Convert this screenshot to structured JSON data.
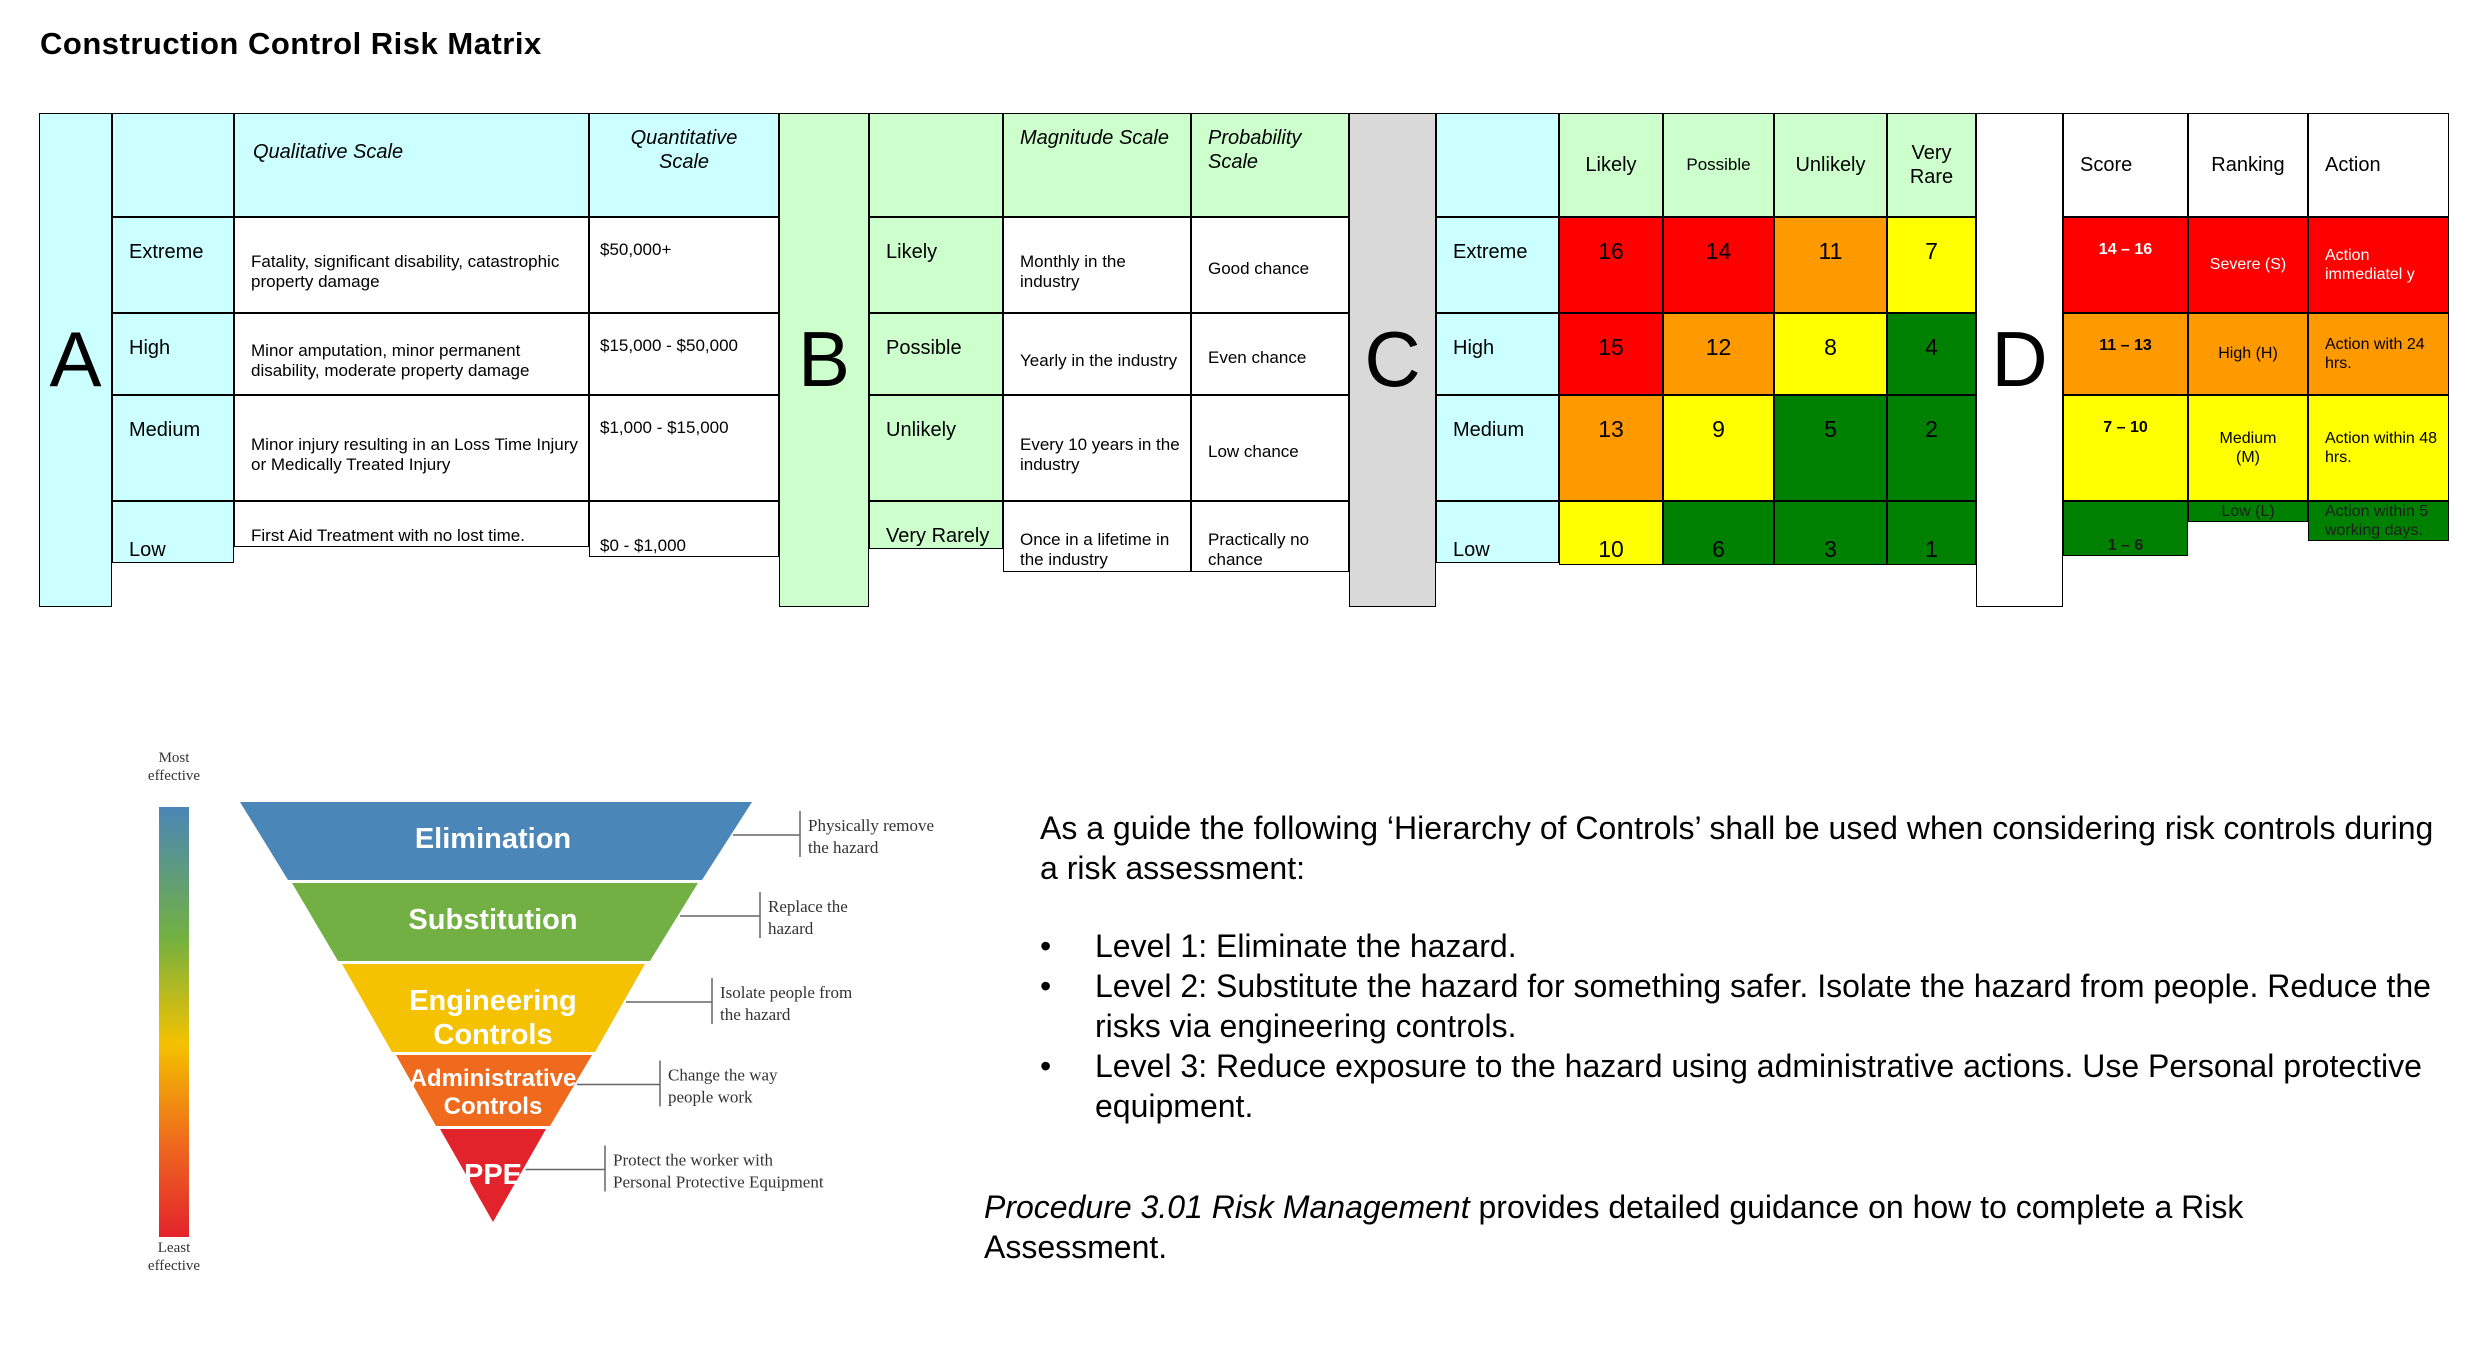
{
  "title": "Construction Control Risk Matrix",
  "colors": {
    "cyan": "#ccffff",
    "green_light": "#ccffcc",
    "grey": "#d9d9d9",
    "red": "#ff0000",
    "orange": "#ff9900",
    "yellow": "#ffff00",
    "green": "#008000",
    "white": "#ffffff"
  },
  "section_a": {
    "letter": "A",
    "header_qualitative": "Qualitative Scale",
    "header_quantitative": "Quantitative Scale",
    "rows": [
      {
        "label": "Extreme",
        "qualitative": "Fatality, significant disability, catastrophic property damage",
        "quantitative": "$50,000+"
      },
      {
        "label": "High",
        "qualitative": "Minor amputation, minor permanent disability, moderate property damage",
        "quantitative": "$15,000 - $50,000"
      },
      {
        "label": "Medium",
        "qualitative": "Minor injury resulting in an Loss Time Injury or Medically Treated Injury",
        "quantitative": "$1,000 - $15,000"
      },
      {
        "label": "Low",
        "qualitative": "First Aid Treatment with no lost time.",
        "quantitative": "$0 - $1,000"
      }
    ]
  },
  "section_b": {
    "letter": "B",
    "header_magnitude": "Magnitude Scale",
    "header_probability": "Probability Scale",
    "rows": [
      {
        "label": "Likely",
        "magnitude": "Monthly in the industry",
        "probability": "Good chance"
      },
      {
        "label": "Possible",
        "magnitude": "Yearly in the industry",
        "probability": "Even chance"
      },
      {
        "label": "Unlikely",
        "magnitude": "Every 10 years in the industry",
        "probability": "Low chance"
      },
      {
        "label": "Very Rarely",
        "magnitude": "Once in a lifetime in the industry",
        "probability": "Practically no chance"
      }
    ]
  },
  "section_c": {
    "letter": "C",
    "columns": [
      "Likely",
      "Possible",
      "Unlikely",
      "Very Rare"
    ],
    "rows": [
      {
        "label": "Extreme",
        "values": [
          "16",
          "14",
          "11",
          "7"
        ],
        "colors": [
          "#ff0000",
          "#ff0000",
          "#ff9900",
          "#ffff00"
        ]
      },
      {
        "label": "High",
        "values": [
          "15",
          "12",
          "8",
          "4"
        ],
        "colors": [
          "#ff0000",
          "#ff9900",
          "#ffff00",
          "#008000"
        ]
      },
      {
        "label": "Medium",
        "values": [
          "13",
          "9",
          "5",
          "2"
        ],
        "colors": [
          "#ff9900",
          "#ffff00",
          "#008000",
          "#008000"
        ]
      },
      {
        "label": "Low",
        "values": [
          "10",
          "6",
          "3",
          "1"
        ],
        "colors": [
          "#ffff00",
          "#008000",
          "#008000",
          "#008000"
        ]
      }
    ]
  },
  "section_d": {
    "letter": "D",
    "header_score": "Score",
    "header_ranking": "Ranking",
    "header_action": "Action",
    "rows": [
      {
        "score": "14 – 16",
        "ranking": "Severe (S)",
        "action": "Action immediatel y",
        "color": "#ff0000"
      },
      {
        "score": "11 – 13",
        "ranking": "High (H)",
        "action": "Action with 24 hrs.",
        "color": "#ff9900"
      },
      {
        "score": "7 – 10",
        "ranking": "Medium (M)",
        "action": "Action within 48 hrs.",
        "color": "#ffff00"
      },
      {
        "score": "1 – 6",
        "ranking": "Low (L)",
        "action": "Action within 5 working days.",
        "color": "#008000"
      }
    ]
  },
  "hierarchy": {
    "most_effective": "Most effective",
    "least_effective": "Least effective",
    "levels": [
      {
        "label": "Elimination",
        "note": "Physically remove the hazard",
        "color": "#4b86b8"
      },
      {
        "label": "Substitution",
        "note": "Replace the hazard",
        "color": "#72b043"
      },
      {
        "label": "Engineering Controls",
        "note": "Isolate people from the hazard",
        "color": "#f4c200"
      },
      {
        "label": "Administrative Controls",
        "note": "Change the way people work",
        "color": "#ef6a1d"
      },
      {
        "label": "PPE",
        "note": "Protect the worker with Personal Protective Equipment",
        "color": "#e3232c"
      }
    ]
  },
  "guide": {
    "intro": "As a guide the following ‘Hierarchy of Controls’ shall be used when considering risk controls during a risk assessment:",
    "bullets": [
      "Level 1: Eliminate the hazard.",
      "Level 2: Substitute the hazard for something safer. Isolate the hazard from people. Reduce the risks via engineering controls.",
      "Level 3: Reduce exposure to the hazard using administrative actions. Use Personal protective equipment."
    ],
    "procedure_name": "Procedure 3.01 Risk Management",
    "procedure_rest": " provides detailed guidance on how to complete a Risk Assessment."
  }
}
